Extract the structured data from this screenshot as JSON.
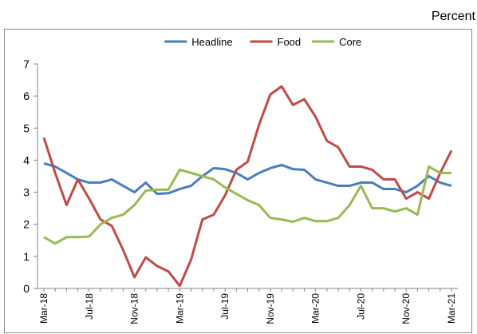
{
  "chart_data": {
    "type": "line",
    "unit_label": "Percent",
    "x": [
      "Mar-18",
      "Apr-18",
      "May-18",
      "Jun-18",
      "Jul-18",
      "Aug-18",
      "Sep-18",
      "Oct-18",
      "Nov-18",
      "Dec-18",
      "Jan-19",
      "Feb-19",
      "Mar-19",
      "Apr-19",
      "May-19",
      "Jun-19",
      "Jul-19",
      "Aug-19",
      "Sep-19",
      "Oct-19",
      "Nov-19",
      "Dec-19",
      "Jan-20",
      "Feb-20",
      "Mar-20",
      "Apr-20",
      "May-20",
      "Jun-20",
      "Jul-20",
      "Aug-20",
      "Sep-20",
      "Oct-20",
      "Nov-20",
      "Dec-20",
      "Jan-21",
      "Feb-21",
      "Mar-21"
    ],
    "xtick_labels": [
      "Mar-18",
      "Jul-18",
      "Nov-18",
      "Mar-19",
      "Jul-19",
      "Nov-19",
      "Mar-20",
      "Jul-20",
      "Nov-20",
      "Mar-21"
    ],
    "ylim": [
      0,
      7
    ],
    "yticks": [
      0,
      1,
      2,
      3,
      4,
      5,
      6,
      7
    ],
    "legend_position": "top",
    "grid": false,
    "series": [
      {
        "name": "Headline",
        "color": "#4a7ebb",
        "values": [
          3.9,
          3.8,
          3.6,
          3.4,
          3.3,
          3.3,
          3.4,
          3.2,
          3.0,
          3.3,
          2.95,
          2.97,
          3.1,
          3.2,
          3.5,
          3.75,
          3.72,
          3.6,
          3.4,
          3.6,
          3.75,
          3.85,
          3.72,
          3.7,
          3.4,
          3.3,
          3.2,
          3.2,
          3.3,
          3.3,
          3.1,
          3.1,
          3.0,
          3.2,
          3.5,
          3.3,
          3.2
        ]
      },
      {
        "name": "Food",
        "color": "#be4b48",
        "values": [
          4.7,
          3.6,
          2.6,
          3.4,
          2.8,
          2.15,
          1.95,
          1.2,
          0.35,
          0.97,
          0.7,
          0.53,
          0.08,
          0.9,
          2.15,
          2.3,
          2.9,
          3.7,
          3.95,
          5.1,
          6.05,
          6.3,
          5.72,
          5.9,
          5.35,
          4.6,
          4.4,
          3.8,
          3.8,
          3.7,
          3.4,
          3.4,
          2.8,
          3.0,
          2.8,
          3.6,
          4.3
        ]
      },
      {
        "name": "Core",
        "color": "#98b954",
        "values": [
          1.6,
          1.4,
          1.6,
          1.6,
          1.62,
          2.0,
          2.2,
          2.3,
          2.6,
          3.05,
          3.08,
          3.08,
          3.7,
          3.6,
          3.5,
          3.4,
          3.15,
          2.95,
          2.75,
          2.6,
          2.2,
          2.15,
          2.08,
          2.2,
          2.1,
          2.1,
          2.2,
          2.6,
          3.2,
          2.5,
          2.5,
          2.4,
          2.5,
          2.3,
          3.8,
          3.6,
          3.6
        ]
      }
    ]
  }
}
